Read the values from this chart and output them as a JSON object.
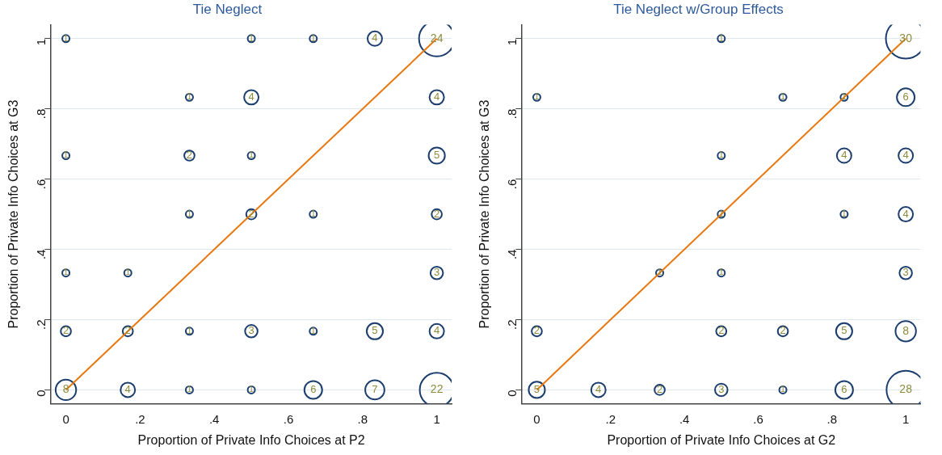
{
  "chart_data": [
    {
      "type": "bubble",
      "title": "Tie Neglect",
      "xlabel": "Proportion of Private Info Choices at P2",
      "ylabel": "Proportion of Private Info Choices at G3",
      "xlim": [
        -0.04,
        1.04
      ],
      "ylim": [
        -0.04,
        1.04
      ],
      "xticks": [
        {
          "value": 0,
          "label": "0"
        },
        {
          "value": 0.2,
          "label": ".2"
        },
        {
          "value": 0.4,
          "label": ".4"
        },
        {
          "value": 0.6,
          "label": ".6"
        },
        {
          "value": 0.8,
          "label": ".8"
        },
        {
          "value": 1,
          "label": "1"
        }
      ],
      "yticks": [
        {
          "value": 0,
          "label": "0"
        },
        {
          "value": 0.2,
          "label": ".2"
        },
        {
          "value": 0.4,
          "label": ".4"
        },
        {
          "value": 0.6,
          "label": ".6"
        },
        {
          "value": 0.8,
          "label": ".8"
        },
        {
          "value": 1,
          "label": "1"
        }
      ],
      "grid": "y",
      "legend": false,
      "series": [
        {
          "type": "bubble",
          "marker": "circle",
          "color": "#1b3e6e",
          "x": [
            0,
            0.5,
            0.667,
            0.833,
            1,
            0.333,
            0.5,
            1,
            0,
            0.333,
            0.5,
            1,
            0.333,
            0.5,
            0.667,
            1,
            0,
            0.167,
            1,
            0,
            0.167,
            0.333,
            0.5,
            0.667,
            0.833,
            1,
            0,
            0.167,
            0.333,
            0.5,
            0.667,
            0.833,
            1
          ],
          "values": [
            1,
            1,
            1,
            1,
            1,
            0.833,
            0.833,
            0.833,
            0.667,
            0.667,
            0.667,
            0.667,
            0.5,
            0.5,
            0.5,
            0.5,
            0.333,
            0.333,
            0.333,
            0.167,
            0.167,
            0.167,
            0.167,
            0.167,
            0.167,
            0.167,
            0,
            0,
            0,
            0,
            0,
            0,
            0
          ],
          "sizes": [
            1,
            1,
            1,
            4,
            24,
            1,
            4,
            4,
            1,
            2,
            1,
            5,
            1,
            2,
            1,
            2,
            1,
            1,
            3,
            2,
            2,
            1,
            3,
            1,
            5,
            4,
            8,
            4,
            1,
            1,
            6,
            7,
            22
          ],
          "value_labels": [
            "1",
            "1",
            "1",
            "4",
            "24",
            "1",
            "4",
            "4",
            "1",
            "2",
            "1",
            "5",
            "1",
            "2",
            "1",
            "2",
            "1",
            "1",
            "3",
            "2",
            "2",
            "1",
            "3",
            "1",
            "5",
            "4",
            "8",
            "4",
            "1",
            "1",
            "6",
            "7",
            "22"
          ]
        },
        {
          "type": "line",
          "color": "#e8770e",
          "x": [
            0,
            1
          ],
          "values": [
            0,
            1
          ]
        }
      ]
    },
    {
      "type": "bubble",
      "title": "Tie Neglect w/Group Effects",
      "xlabel": "Proportion of Private Info Choices at G2",
      "ylabel": "Proportion of Private Info Choices at G3",
      "xlim": [
        -0.04,
        1.04
      ],
      "ylim": [
        -0.04,
        1.04
      ],
      "xticks": [
        {
          "value": 0,
          "label": "0"
        },
        {
          "value": 0.2,
          "label": ".2"
        },
        {
          "value": 0.4,
          "label": ".4"
        },
        {
          "value": 0.6,
          "label": ".6"
        },
        {
          "value": 0.8,
          "label": ".8"
        },
        {
          "value": 1,
          "label": "1"
        }
      ],
      "yticks": [
        {
          "value": 0,
          "label": "0"
        },
        {
          "value": 0.2,
          "label": ".2"
        },
        {
          "value": 0.4,
          "label": ".4"
        },
        {
          "value": 0.6,
          "label": ".6"
        },
        {
          "value": 0.8,
          "label": ".8"
        },
        {
          "value": 1,
          "label": "1"
        }
      ],
      "grid": "y",
      "legend": false,
      "series": [
        {
          "type": "bubble",
          "marker": "circle",
          "color": "#1b3e6e",
          "x": [
            0.5,
            1,
            0,
            0.667,
            0.833,
            1,
            0.5,
            0.833,
            1,
            0.5,
            0.833,
            1,
            0.333,
            0.5,
            1,
            0,
            0.5,
            0.667,
            0.833,
            1,
            0,
            0.167,
            0.333,
            0.5,
            0.667,
            0.833,
            1
          ],
          "values": [
            1,
            1,
            0.833,
            0.833,
            0.833,
            0.833,
            0.667,
            0.667,
            0.667,
            0.5,
            0.5,
            0.5,
            0.333,
            0.333,
            0.333,
            0.167,
            0.167,
            0.167,
            0.167,
            0.167,
            0,
            0,
            0,
            0,
            0,
            0,
            0
          ],
          "sizes": [
            1,
            30,
            1,
            1,
            1,
            6,
            1,
            4,
            4,
            1,
            1,
            4,
            1,
            1,
            3,
            2,
            2,
            2,
            5,
            8,
            5,
            4,
            2,
            3,
            1,
            6,
            28
          ],
          "value_labels": [
            "1",
            "30",
            "1",
            "1",
            "1",
            "6",
            "1",
            "4",
            "4",
            "1",
            "1",
            "4",
            "1",
            "1",
            "3",
            "2",
            "2",
            "2",
            "5",
            "8",
            "5",
            "4",
            "2",
            "3",
            "1",
            "6",
            "28"
          ]
        },
        {
          "type": "line",
          "color": "#e8770e",
          "x": [
            0,
            1
          ],
          "values": [
            0,
            1
          ]
        }
      ]
    }
  ]
}
